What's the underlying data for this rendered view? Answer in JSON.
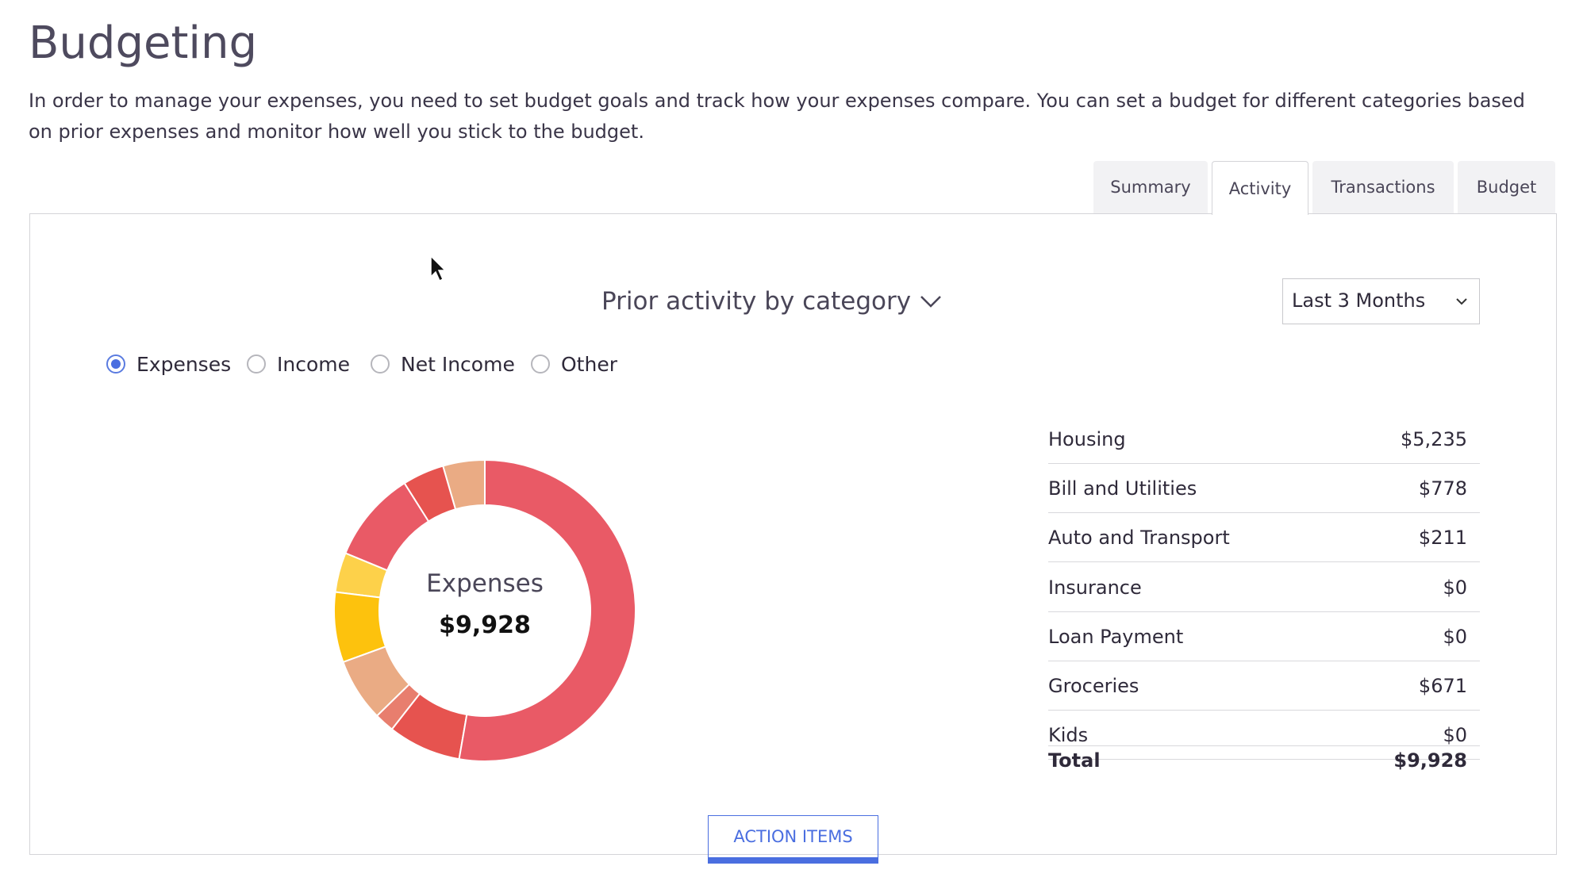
{
  "header": {
    "title": "Budgeting",
    "description": "In order to manage your expenses, you need to set budget goals and track how your expenses compare. You can set a budget for different categories based on prior expenses and monitor how well you stick to the budget."
  },
  "tabs": [
    "Summary",
    "Activity",
    "Transactions",
    "Budget"
  ],
  "active_tab": 1,
  "panel": {
    "heading": "Prior activity by category",
    "range": "Last 3 Months",
    "radios": [
      "Expenses",
      "Income",
      "Net Income",
      "Other"
    ],
    "selected_radio": 0,
    "donut": {
      "center_label": "Expenses",
      "center_value": "$9,928",
      "values": [
        5235,
        778,
        211,
        671,
        747,
        422,
        975,
        444,
        445
      ],
      "colors": [
        "#e95a66",
        "#e6534f",
        "#e87e6e",
        "#eaab84",
        "#fdc20d",
        "#fdd14a",
        "#e95a66",
        "#e6534f",
        "#eaab84"
      ]
    },
    "table": {
      "rows": [
        [
          "Housing",
          "$5,235"
        ],
        [
          "Bill and Utilities",
          "$778"
        ],
        [
          "Auto and Transport",
          "$211"
        ],
        [
          "Insurance",
          "$0"
        ],
        [
          "Loan Payment",
          "$0"
        ],
        [
          "Groceries",
          "$671"
        ],
        [
          "Kids",
          "$0"
        ]
      ],
      "total": [
        "Total",
        "$9,928"
      ]
    },
    "button": "ACTION ITEMS"
  }
}
